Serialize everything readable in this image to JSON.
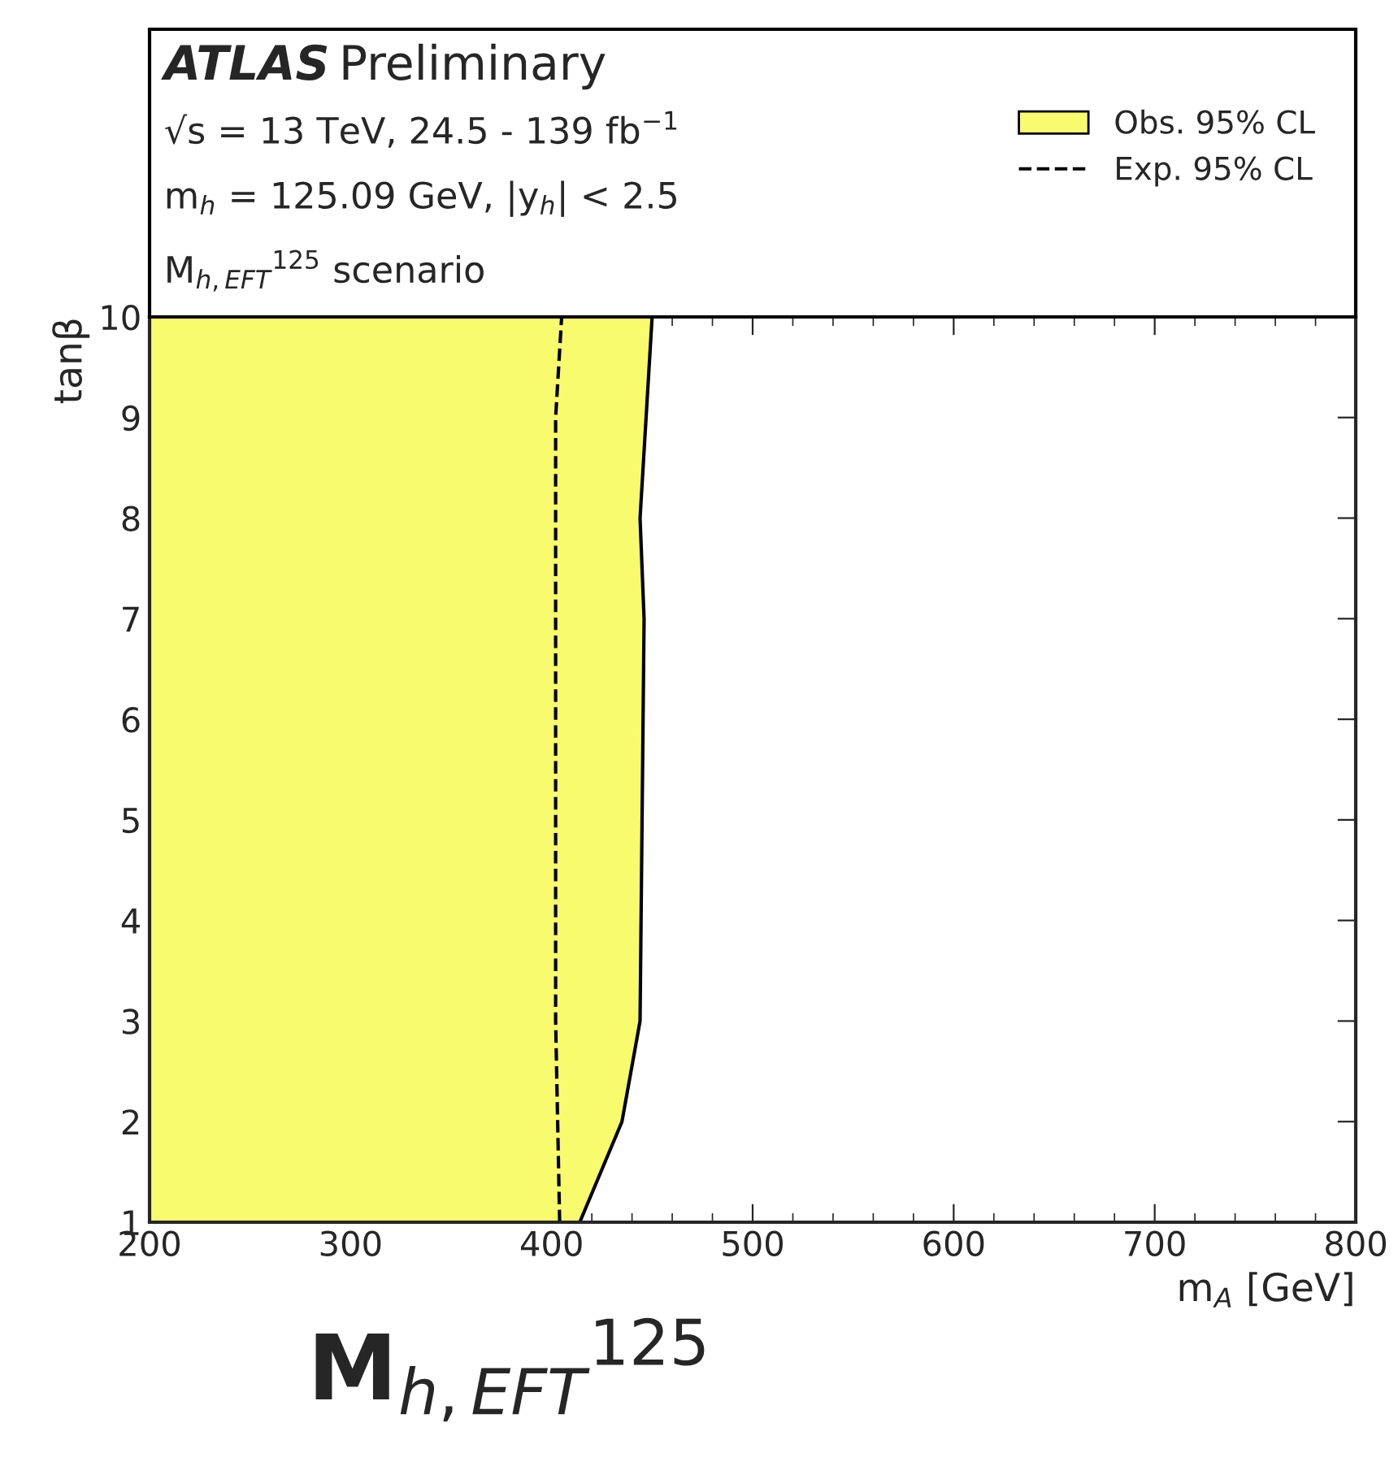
{
  "chart_data": {
    "type": "area",
    "orientation": "horizontal",
    "title": "ATLAS Preliminary",
    "xlabel": "m$_{A}$ [GeV]",
    "ylabel": "tanβ",
    "xlim": [
      200,
      800
    ],
    "xticks": [
      200,
      300,
      400,
      500,
      600,
      700,
      800
    ],
    "ylim": [
      1,
      10
    ],
    "yticks": [
      1,
      2,
      3,
      4,
      5,
      6,
      7,
      8,
      9,
      10
    ],
    "grid": false,
    "legend": "top right",
    "annotations": [
      "√s = 13 TeV, 24.5 - 139 fb$^{−1}$",
      "m$_{h}$ = 125.09 GeV, |y$_{h}$| < 2.5",
      "M$_{h,EFT}$$^{125}$ scenario",
      "M$_{h,EFT}$$^{125}$"
    ],
    "series": [
      {
        "name": "Obs. 95% CL",
        "color": "#f9fb6e",
        "x": [
          1,
          2,
          3,
          7,
          8,
          10
        ],
        "values": [
          414,
          435,
          444,
          446,
          444,
          450
        ]
      },
      {
        "name": "Exp. 95% CL",
        "type": "line",
        "color": "#000000",
        "line_style": "dashed",
        "x": [
          1,
          2,
          3,
          5,
          7,
          9,
          10
        ],
        "values": [
          404,
          403,
          402,
          402,
          402,
          402,
          405
        ]
      }
    ]
  }
}
